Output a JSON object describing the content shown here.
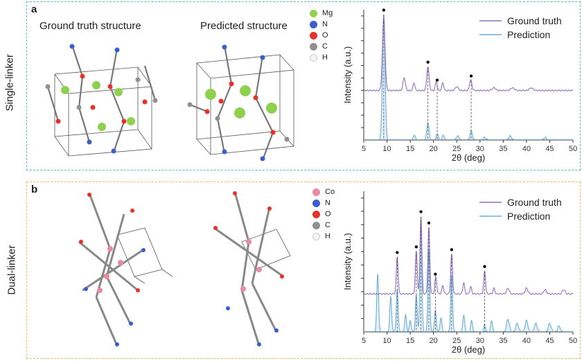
{
  "row_labels": [
    "Single-linker",
    "Dual-linker"
  ],
  "panels": [
    {
      "letter": "a",
      "structure_titles": [
        "Ground truth structure",
        "Predicted structure"
      ],
      "element_legend": [
        {
          "label": "Mg",
          "color": "#8fd14f"
        },
        {
          "label": "N",
          "color": "#3a5fcd"
        },
        {
          "label": "O",
          "color": "#e8302a"
        },
        {
          "label": "C",
          "color": "#909090"
        },
        {
          "label": "H",
          "color": "#f4f4f4"
        }
      ]
    },
    {
      "letter": "b",
      "structure_titles": [],
      "element_legend": [
        {
          "label": "Co",
          "color": "#e88aa0"
        },
        {
          "label": "N",
          "color": "#3a5fcd"
        },
        {
          "label": "O",
          "color": "#e8302a"
        },
        {
          "label": "C",
          "color": "#909090"
        },
        {
          "label": "H",
          "color": "#f4f4f4"
        }
      ]
    }
  ],
  "chart_data": [
    {
      "type": "line",
      "xlabel": "2θ (deg)",
      "ylabel": "Intensity (a.u.)",
      "xlim": [
        5,
        50
      ],
      "xticks": [
        5,
        10,
        15,
        20,
        25,
        30,
        35,
        40,
        45,
        50
      ],
      "legend": "top-right",
      "series": [
        {
          "name": "Ground truth",
          "color": "#8e6fc1",
          "offset": 0.38,
          "peaks": [
            [
              9.3,
              0.55,
              0.28
            ],
            [
              13.7,
              0.1,
              0.25
            ],
            [
              15.8,
              0.06,
              0.2
            ],
            [
              18.8,
              0.18,
              0.25
            ],
            [
              20.6,
              0.07,
              0.2
            ],
            [
              22.0,
              0.06,
              0.2
            ],
            [
              25.0,
              0.03,
              0.3
            ],
            [
              28.0,
              0.08,
              0.25
            ],
            [
              33.0,
              0.02,
              0.4
            ],
            [
              37.0,
              0.02,
              0.4
            ],
            [
              41.0,
              0.02,
              0.4
            ]
          ]
        },
        {
          "name": "Prediction",
          "color": "#6aaed6",
          "offset": 0.0,
          "peaks": [
            [
              9.3,
              0.96,
              0.28
            ],
            [
              15.9,
              0.04,
              0.2
            ],
            [
              18.8,
              0.13,
              0.25
            ],
            [
              20.8,
              0.05,
              0.2
            ],
            [
              22.1,
              0.04,
              0.2
            ],
            [
              25.2,
              0.03,
              0.3
            ],
            [
              28.1,
              0.07,
              0.25
            ],
            [
              31.0,
              0.02,
              0.3
            ],
            [
              36.5,
              0.03,
              0.3
            ],
            [
              44.0,
              0.02,
              0.3
            ]
          ]
        }
      ],
      "marked_peaks": [
        9.3,
        18.8,
        20.8,
        28.1
      ]
    },
    {
      "type": "line",
      "xlabel": "2θ (deg)",
      "ylabel": "Intensity (a.u.)",
      "xlim": [
        5,
        50
      ],
      "xticks": [
        5,
        10,
        15,
        20,
        25,
        30,
        35,
        40,
        45,
        50
      ],
      "legend": "top-right",
      "series": [
        {
          "name": "Ground truth",
          "color": "#8e6fc1",
          "offset": 0.27,
          "peaks": [
            [
              12.2,
              0.26,
              0.2
            ],
            [
              16.3,
              0.3,
              0.2
            ],
            [
              17.3,
              0.55,
              0.2
            ],
            [
              19.0,
              0.47,
              0.2
            ],
            [
              20.5,
              0.12,
              0.2
            ],
            [
              22.0,
              0.06,
              0.2
            ],
            [
              23.9,
              0.28,
              0.2
            ],
            [
              26.5,
              0.08,
              0.2
            ],
            [
              28.0,
              0.05,
              0.2
            ],
            [
              31.0,
              0.16,
              0.2
            ],
            [
              33.0,
              0.04,
              0.2
            ],
            [
              36.0,
              0.04,
              0.3
            ],
            [
              40.0,
              0.04,
              0.3
            ],
            [
              44.0,
              0.03,
              0.3
            ],
            [
              48.0,
              0.03,
              0.3
            ]
          ]
        },
        {
          "name": "Prediction",
          "color": "#6aaed6",
          "offset": 0.0,
          "peaks": [
            [
              8.0,
              0.41,
              0.2
            ],
            [
              10.8,
              0.25,
              0.2
            ],
            [
              12.2,
              0.3,
              0.2
            ],
            [
              14.0,
              0.12,
              0.2
            ],
            [
              15.0,
              0.08,
              0.2
            ],
            [
              16.3,
              0.26,
              0.2
            ],
            [
              17.3,
              0.8,
              0.2
            ],
            [
              19.0,
              0.58,
              0.2
            ],
            [
              20.4,
              0.15,
              0.2
            ],
            [
              21.6,
              0.1,
              0.2
            ],
            [
              23.9,
              0.4,
              0.2
            ],
            [
              26.5,
              0.12,
              0.2
            ],
            [
              28.2,
              0.08,
              0.2
            ],
            [
              31.0,
              0.05,
              0.2
            ],
            [
              32.5,
              0.08,
              0.2
            ],
            [
              36.0,
              0.09,
              0.3
            ],
            [
              38.0,
              0.06,
              0.3
            ],
            [
              40.0,
              0.08,
              0.3
            ],
            [
              42.0,
              0.06,
              0.3
            ],
            [
              45.0,
              0.06,
              0.3
            ],
            [
              47.0,
              0.04,
              0.3
            ]
          ]
        }
      ],
      "marked_peaks": [
        12.2,
        16.3,
        17.3,
        19.0,
        20.4,
        23.9,
        31.0
      ]
    }
  ]
}
